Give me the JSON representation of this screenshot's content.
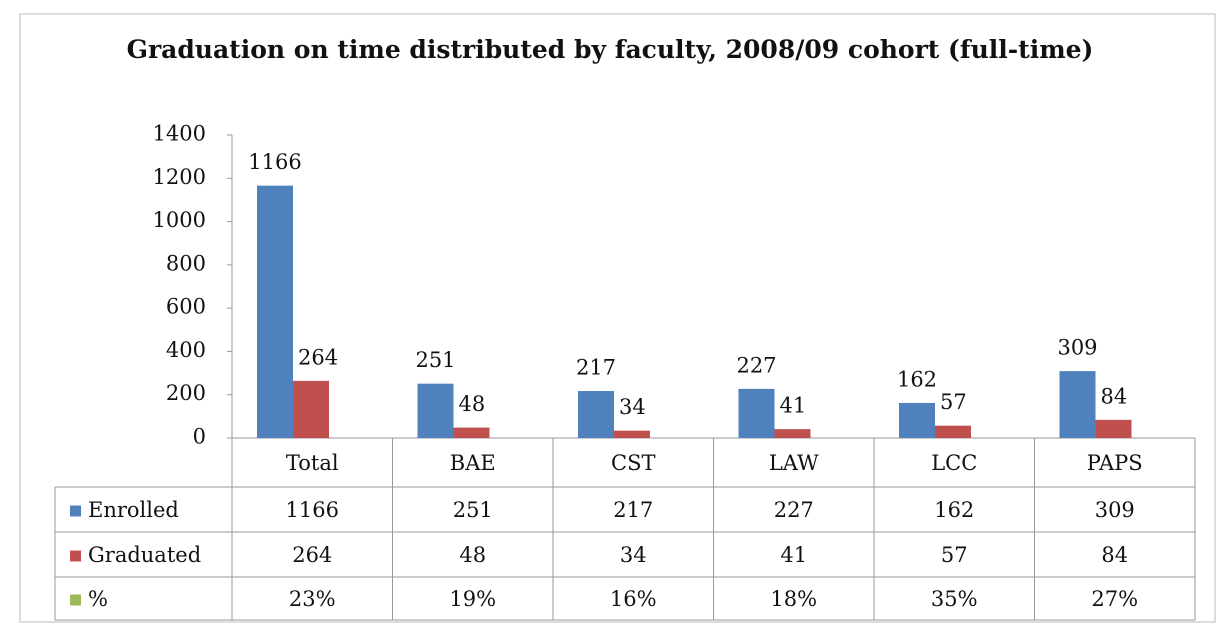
{
  "chart_data": {
    "type": "bar",
    "title": "Graduation on time distributed by faculty, 2008/09 cohort (full-time)",
    "categories": [
      "Total",
      "BAE",
      "CST",
      "LAW",
      "LCC",
      "PAPS"
    ],
    "series": [
      {
        "name": "Enrolled",
        "color": "#4f81bd",
        "values": [
          1166,
          251,
          217,
          227,
          162,
          309
        ]
      },
      {
        "name": "Graduated",
        "color": "#c0504d",
        "values": [
          264,
          48,
          34,
          41,
          57,
          84
        ]
      },
      {
        "name": "%",
        "color": "#9bbb59",
        "values": [
          23,
          19,
          16,
          18,
          35,
          27
        ],
        "value_labels": [
          "23%",
          "19%",
          "16%",
          "18%",
          "35%",
          "27%"
        ]
      }
    ],
    "ylim": [
      0,
      1400
    ],
    "yticks": [
      0,
      200,
      400,
      600,
      800,
      1000,
      1200,
      1400
    ],
    "grid": false
  }
}
